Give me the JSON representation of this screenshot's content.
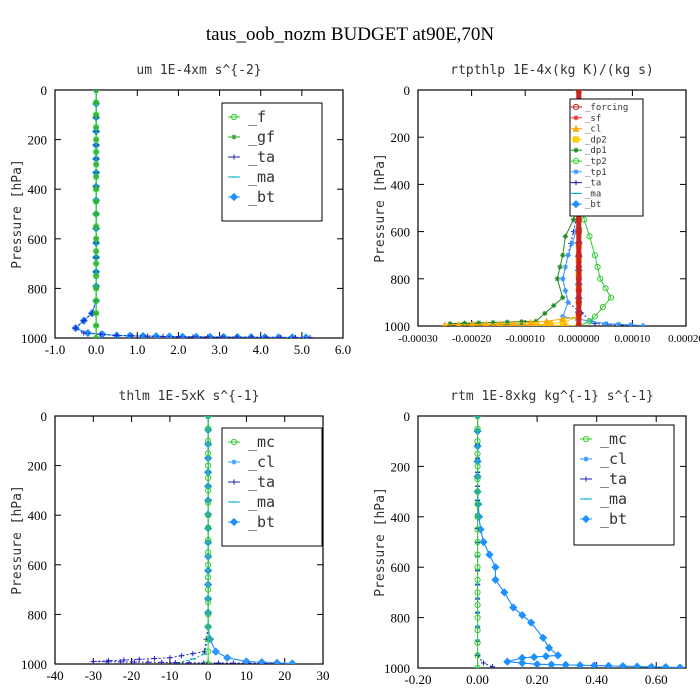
{
  "title": "taus_oob_nozm  BUDGET at90E,70N",
  "chart_data": [
    {
      "type": "line",
      "title": "um   1E-4xm s^{-2}",
      "ylabel": "Pressure [hPa]",
      "xlim": [
        -1.0,
        6.0
      ],
      "ylim": [
        1000,
        0
      ],
      "xticks": [
        -1.0,
        0.0,
        1.0,
        2.0,
        3.0,
        4.0,
        5.0,
        6.0
      ],
      "xtick_labels": [
        "-1.0",
        "0.0",
        "1.0",
        "2.0",
        "3.0",
        "4.0",
        "5.0",
        "6.0"
      ],
      "yticks": [
        0,
        200,
        400,
        600,
        800,
        1000
      ],
      "legend_position": "top-right",
      "series": [
        {
          "name": "_f",
          "color": "#33cc33",
          "marker": "circle",
          "points": [
            [
              0,
              0
            ],
            [
              0,
              100
            ],
            [
              0,
              200
            ],
            [
              0,
              300
            ],
            [
              0,
              400
            ],
            [
              0,
              500
            ],
            [
              0,
              600
            ],
            [
              0,
              700
            ],
            [
              0,
              800
            ],
            [
              0,
              900
            ],
            [
              0,
              950
            ],
            [
              0,
              1000
            ]
          ]
        },
        {
          "name": "_gf",
          "color": "#2aa02a",
          "marker": "star",
          "points": [
            [
              0,
              0
            ],
            [
              0,
              100
            ],
            [
              0,
              200
            ],
            [
              0,
              300
            ],
            [
              0,
              400
            ],
            [
              0,
              500
            ],
            [
              0,
              600
            ],
            [
              0,
              700
            ],
            [
              0,
              800
            ],
            [
              0,
              900
            ],
            [
              0,
              950
            ],
            [
              0,
              1000
            ]
          ]
        },
        {
          "name": "_ta",
          "color": "#2222bb",
          "marker": "plus",
          "points": [
            [
              0,
              0
            ],
            [
              0,
              500
            ],
            [
              0,
              850
            ],
            [
              -0.1,
              900
            ],
            [
              -0.3,
              930
            ],
            [
              -0.5,
              960
            ],
            [
              -0.3,
              980
            ],
            [
              0.5,
              990
            ],
            [
              2.0,
              995
            ],
            [
              5.2,
              998
            ]
          ]
        },
        {
          "name": "_ma",
          "color": "#00aacc",
          "marker": "dash",
          "points": [
            [
              0,
              0
            ],
            [
              0,
              500
            ],
            [
              0,
              900
            ],
            [
              0,
              1000
            ]
          ]
        },
        {
          "name": "_bt",
          "color": "#1e90ff",
          "marker": "diamond",
          "points": [
            [
              0,
              0
            ],
            [
              0,
              500
            ],
            [
              0,
              850
            ],
            [
              -0.1,
              900
            ],
            [
              -0.3,
              930
            ],
            [
              -0.5,
              960
            ],
            [
              -0.2,
              980
            ],
            [
              0.5,
              990
            ],
            [
              2.1,
              995
            ],
            [
              5.1,
              998
            ]
          ]
        }
      ]
    },
    {
      "type": "line",
      "title": "rtpthlp   1E-4x(kg K)/(kg s)",
      "ylabel": "Pressure [hPa]",
      "xlim": [
        -0.0003,
        0.0002
      ],
      "ylim": [
        1000,
        0
      ],
      "xticks": [
        -0.0003,
        -0.0002,
        -0.0001,
        0.0,
        0.0001,
        0.0002
      ],
      "xtick_labels": [
        "-0.00030",
        "-0.00020",
        "-0.00010",
        "0.000000",
        "0.00010",
        "0.00020"
      ],
      "yticks": [
        0,
        200,
        400,
        600,
        800,
        1000
      ],
      "legend_position": "top-right",
      "series": [
        {
          "name": "_forcing",
          "color": "#cc2222",
          "marker": "circle",
          "points": [
            [
              0,
              0
            ],
            [
              0,
              100
            ],
            [
              0,
              200
            ],
            [
              0,
              300
            ],
            [
              0,
              400
            ],
            [
              0,
              500
            ],
            [
              0,
              600
            ],
            [
              0,
              700
            ],
            [
              0,
              800
            ],
            [
              0,
              900
            ],
            [
              0,
              1000
            ]
          ]
        },
        {
          "name": "_sf",
          "color": "#ee3333",
          "marker": "star",
          "points": [
            [
              0,
              0
            ],
            [
              0,
              500
            ],
            [
              0,
              1000
            ]
          ]
        },
        {
          "name": "_cl",
          "color": "#ffaa00",
          "marker": "triangle",
          "points": [
            [
              0,
              0
            ],
            [
              0,
              900
            ],
            [
              0,
              960
            ],
            [
              -6e-05,
              980
            ],
            [
              -0.00012,
              990
            ],
            [
              -0.00025,
              995
            ],
            [
              0,
              1000
            ]
          ]
        },
        {
          "name": "_dp2",
          "color": "#ffcc00",
          "marker": "square",
          "points": [
            [
              0,
              0
            ],
            [
              0,
              960
            ],
            [
              -3e-05,
              985
            ],
            [
              -8e-05,
              995
            ],
            [
              0,
              1000
            ]
          ]
        },
        {
          "name": "_dp1",
          "color": "#228b22",
          "marker": "star",
          "points": [
            [
              0,
              0
            ],
            [
              0,
              450
            ],
            [
              -5e-06,
              500
            ],
            [
              -1e-05,
              550
            ],
            [
              -2.5e-05,
              620
            ],
            [
              -3e-05,
              700
            ],
            [
              -4e-05,
              800
            ],
            [
              -3e-05,
              880
            ],
            [
              -8e-05,
              980
            ],
            [
              -0.00024,
              990
            ],
            [
              0,
              1000
            ]
          ]
        },
        {
          "name": "_tp2",
          "color": "#33cc33",
          "marker": "circle",
          "points": [
            [
              0,
              0
            ],
            [
              0,
              450
            ],
            [
              5e-06,
              500
            ],
            [
              1e-05,
              550
            ],
            [
              2e-05,
              620
            ],
            [
              3e-05,
              700
            ],
            [
              4e-05,
              800
            ],
            [
              6e-05,
              880
            ],
            [
              3e-05,
              960
            ],
            [
              2e-05,
              980
            ],
            [
              0,
              1000
            ]
          ]
        },
        {
          "name": "_tp1",
          "color": "#3399ff",
          "marker": "star",
          "points": [
            [
              0,
              0
            ],
            [
              0,
              500
            ],
            [
              -5e-06,
              600
            ],
            [
              -2e-05,
              700
            ],
            [
              -3e-05,
              800
            ],
            [
              -2e-05,
              900
            ],
            [
              -3e-05,
              960
            ],
            [
              5e-05,
              990
            ],
            [
              0.00012,
              998
            ]
          ]
        },
        {
          "name": "_ta",
          "color": "#2222bb",
          "marker": "plus",
          "points": [
            [
              0,
              0
            ],
            [
              0,
              500
            ],
            [
              -1e-05,
              600
            ],
            [
              -2e-05,
              700
            ],
            [
              -3e-05,
              800
            ],
            [
              -2e-05,
              900
            ],
            [
              3e-05,
              990
            ],
            [
              0.0001,
              998
            ]
          ]
        },
        {
          "name": "_ma",
          "color": "#00aacc",
          "marker": "dash",
          "points": [
            [
              0,
              0
            ],
            [
              0,
              1000
            ]
          ]
        },
        {
          "name": "_bt",
          "color": "#1e90ff",
          "marker": "diamond",
          "points": [
            [
              0,
              0
            ],
            [
              0,
              1000
            ]
          ]
        }
      ]
    },
    {
      "type": "line",
      "title": "thlm   1E-5xK  s^{-1}",
      "ylabel": "Pressure [hPa]",
      "xlim": [
        -40,
        30
      ],
      "ylim": [
        1000,
        0
      ],
      "xticks": [
        -40,
        -30,
        -20,
        -10,
        0,
        10,
        20,
        30
      ],
      "xtick_labels": [
        "-40",
        "-30",
        "-20",
        "-10",
        "0",
        "10",
        "20",
        "30"
      ],
      "yticks": [
        0,
        200,
        400,
        600,
        800,
        1000
      ],
      "legend_position": "top-right",
      "series": [
        {
          "name": "_mc",
          "color": "#33cc33",
          "marker": "circle",
          "points": [
            [
              0,
              0
            ],
            [
              0,
              100
            ],
            [
              0,
              200
            ],
            [
              0,
              300
            ],
            [
              0,
              400
            ],
            [
              0,
              500
            ],
            [
              0,
              600
            ],
            [
              0,
              700
            ],
            [
              0,
              800
            ],
            [
              0,
              900
            ],
            [
              0,
              1000
            ]
          ]
        },
        {
          "name": "_cl",
          "color": "#3399ff",
          "marker": "star",
          "points": [
            [
              0,
              0
            ],
            [
              0,
              850
            ],
            [
              0.5,
              900
            ],
            [
              2,
              950
            ],
            [
              5,
              975
            ],
            [
              10,
              990
            ],
            [
              22,
              998
            ]
          ]
        },
        {
          "name": "_ta",
          "color": "#2222bb",
          "marker": "plus",
          "points": [
            [
              0,
              0
            ],
            [
              0,
              850
            ],
            [
              -1,
              950
            ],
            [
              -10,
              975
            ],
            [
              -30,
              990
            ],
            [
              -5,
              995
            ],
            [
              22,
              998
            ]
          ]
        },
        {
          "name": "_ma",
          "color": "#00aacc",
          "marker": "dash",
          "points": [
            [
              0,
              0
            ],
            [
              0,
              900
            ],
            [
              -1,
              960
            ],
            [
              -4,
              980
            ],
            [
              -8,
              995
            ]
          ]
        },
        {
          "name": "_bt",
          "color": "#1e90ff",
          "marker": "diamond",
          "points": [
            [
              0,
              0
            ],
            [
              0,
              850
            ],
            [
              0.5,
              900
            ],
            [
              2,
              950
            ],
            [
              5,
              975
            ],
            [
              10,
              990
            ],
            [
              22,
              998
            ]
          ]
        }
      ]
    },
    {
      "type": "line",
      "title": "rtm   1E-8xkg kg^{-1} s^{-1}",
      "ylabel": "Pressure [hPa]",
      "xlim": [
        -0.2,
        0.7
      ],
      "ylim": [
        1000,
        0
      ],
      "xticks": [
        -0.2,
        0.0,
        0.2,
        0.4,
        0.6
      ],
      "xtick_labels": [
        "-0.20",
        "0.00",
        "0.20",
        "0.40",
        "0.60"
      ],
      "yticks": [
        0,
        200,
        400,
        600,
        800,
        1000
      ],
      "legend_position": "top-right",
      "series": [
        {
          "name": "_mc",
          "color": "#33cc33",
          "marker": "circle",
          "points": [
            [
              0,
              0
            ],
            [
              0,
              100
            ],
            [
              0,
              200
            ],
            [
              0,
              300
            ],
            [
              0,
              400
            ],
            [
              0,
              500
            ],
            [
              0,
              600
            ],
            [
              0,
              700
            ],
            [
              0,
              800
            ],
            [
              0,
              900
            ],
            [
              0,
              1000
            ]
          ]
        },
        {
          "name": "_cl",
          "color": "#1e90ff",
          "marker": "star",
          "points": [
            [
              0,
              0
            ],
            [
              0,
              300
            ],
            [
              0.005,
              400
            ],
            [
              0.01,
              450
            ],
            [
              0.02,
              500
            ],
            [
              0.04,
              550
            ],
            [
              0.06,
              600
            ],
            [
              0.06,
              650
            ],
            [
              0.09,
              700
            ],
            [
              0.12,
              760
            ],
            [
              0.18,
              820
            ],
            [
              0.22,
              880
            ],
            [
              0.24,
              920
            ],
            [
              0.27,
              950
            ],
            [
              0.15,
              960
            ],
            [
              0.1,
              975
            ],
            [
              0.2,
              985
            ],
            [
              0.68,
              998
            ]
          ]
        },
        {
          "name": "_ta",
          "color": "#2222bb",
          "marker": "plus",
          "points": [
            [
              0,
              0
            ],
            [
              0,
              950
            ],
            [
              0.02,
              980
            ],
            [
              0.05,
              995
            ]
          ]
        },
        {
          "name": "_ma",
          "color": "#00aacc",
          "marker": "dash",
          "points": [
            [
              0,
              0
            ],
            [
              0,
              1000
            ]
          ]
        },
        {
          "name": "_bt",
          "color": "#1e90ff",
          "marker": "diamond",
          "points": [
            [
              0,
              0
            ],
            [
              0,
              300
            ],
            [
              0.005,
              400
            ],
            [
              0.01,
              450
            ],
            [
              0.02,
              500
            ],
            [
              0.04,
              550
            ],
            [
              0.06,
              600
            ],
            [
              0.06,
              650
            ],
            [
              0.09,
              700
            ],
            [
              0.12,
              760
            ],
            [
              0.18,
              820
            ],
            [
              0.22,
              880
            ],
            [
              0.24,
              920
            ],
            [
              0.27,
              950
            ],
            [
              0.15,
              960
            ],
            [
              0.1,
              975
            ],
            [
              0.2,
              985
            ],
            [
              0.68,
              998
            ]
          ]
        }
      ]
    }
  ]
}
